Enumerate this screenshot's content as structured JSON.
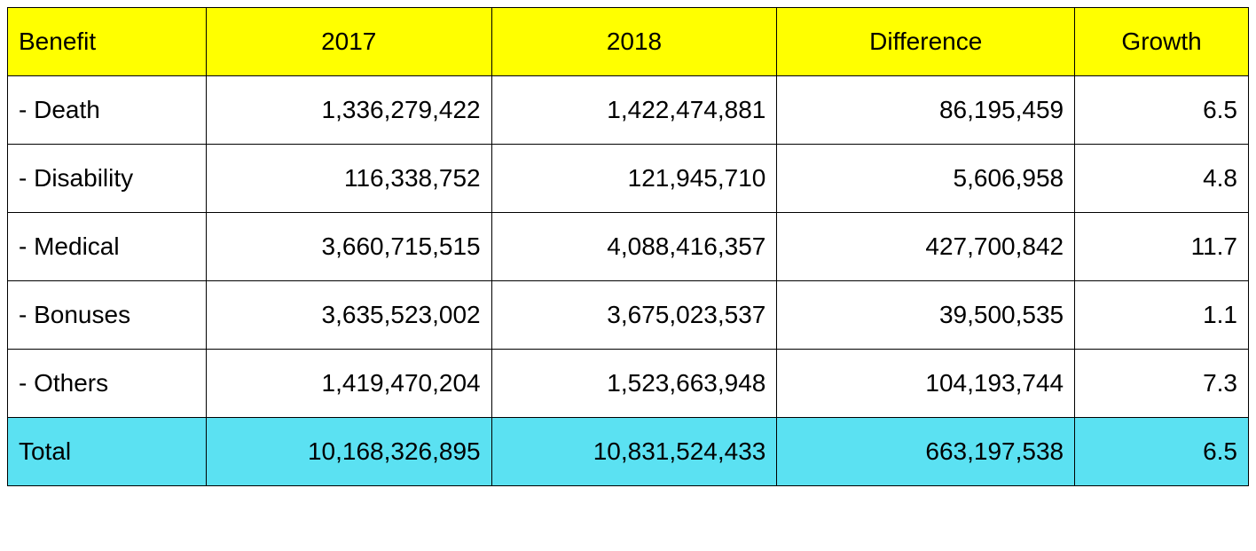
{
  "table": {
    "type": "table",
    "background_color": "#ffffff",
    "border_color": "#000000",
    "header_bg_color": "#ffff00",
    "total_bg_color": "#5be1f2",
    "font_family": "Arial",
    "font_size": 28,
    "columns": [
      {
        "key": "benefit",
        "label": "Benefit",
        "align_header": "left",
        "align_body": "left"
      },
      {
        "key": "y2017",
        "label": "2017",
        "align_header": "center",
        "align_body": "right"
      },
      {
        "key": "y2018",
        "label": "2018",
        "align_header": "center",
        "align_body": "right"
      },
      {
        "key": "difference",
        "label": "Difference",
        "align_header": "center",
        "align_body": "right"
      },
      {
        "key": "growth",
        "label": "Growth",
        "align_header": "center",
        "align_body": "right"
      }
    ],
    "rows": [
      {
        "benefit": " - Death",
        "y2017": "1,336,279,422",
        "y2018": "1,422,474,881",
        "difference": "86,195,459",
        "growth": "6.5"
      },
      {
        "benefit": " - Disability",
        "y2017": "116,338,752",
        "y2018": "121,945,710",
        "difference": "5,606,958",
        "growth": "4.8"
      },
      {
        "benefit": " - Medical",
        "y2017": "3,660,715,515",
        "y2018": "4,088,416,357",
        "difference": "427,700,842",
        "growth": "11.7"
      },
      {
        "benefit": " - Bonuses",
        "y2017": "3,635,523,002",
        "y2018": "3,675,023,537",
        "difference": "39,500,535",
        "growth": "1.1"
      },
      {
        "benefit": " - Others",
        "y2017": "1,419,470,204",
        "y2018": "1,523,663,948",
        "difference": "104,193,744",
        "growth": "7.3"
      }
    ],
    "total": {
      "benefit": " Total",
      "y2017": "10,168,326,895",
      "y2018": "10,831,524,433",
      "difference": "663,197,538",
      "growth": "6.5"
    }
  }
}
